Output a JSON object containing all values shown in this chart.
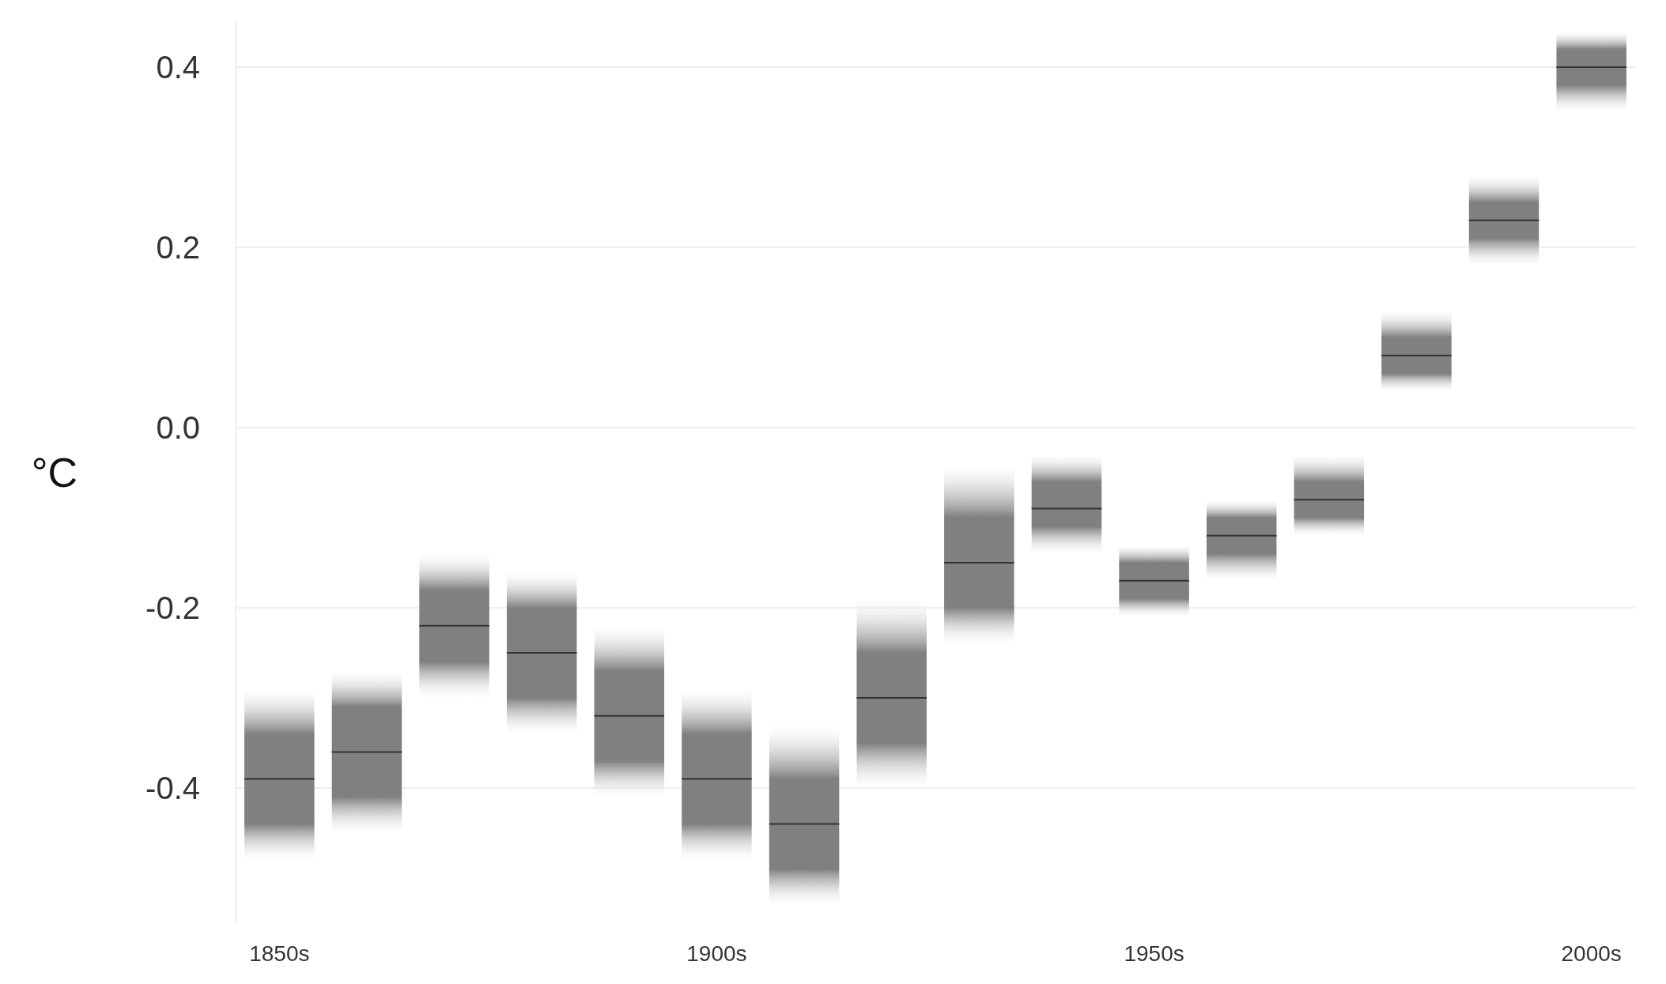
{
  "chart_data": {
    "type": "box",
    "ylabel": "°C",
    "categories": [
      "1850s",
      null,
      null,
      null,
      null,
      "1900s",
      null,
      null,
      null,
      null,
      "1950s",
      null,
      null,
      null,
      null,
      "2000s"
    ],
    "ylim": [
      -0.55,
      0.45
    ],
    "yticks": [
      {
        "value": -0.4,
        "label": "-0.4"
      },
      {
        "value": -0.2,
        "label": "-0.2"
      },
      {
        "value": 0,
        "label": "0.0"
      },
      {
        "value": 0.2,
        "label": "0.2"
      },
      {
        "value": 0.4,
        "label": "0.4"
      }
    ],
    "grid": "y",
    "series": [
      {
        "color": "#808080",
        "boxes": [
          {
            "low": -0.48,
            "q1": -0.44,
            "median": -0.39,
            "q3": -0.34,
            "high": -0.29
          },
          {
            "low": -0.45,
            "q1": -0.41,
            "median": -0.36,
            "q3": -0.31,
            "high": -0.27
          },
          {
            "low": -0.3,
            "q1": -0.26,
            "median": -0.22,
            "q3": -0.18,
            "high": -0.14
          },
          {
            "low": -0.34,
            "q1": -0.3,
            "median": -0.25,
            "q3": -0.2,
            "high": -0.16
          },
          {
            "low": -0.41,
            "q1": -0.37,
            "median": -0.32,
            "q3": -0.27,
            "high": -0.22
          },
          {
            "low": -0.48,
            "q1": -0.44,
            "median": -0.39,
            "q3": -0.34,
            "high": -0.29
          },
          {
            "low": -0.53,
            "q1": -0.49,
            "median": -0.44,
            "q3": -0.39,
            "high": -0.33
          },
          {
            "low": -0.4,
            "q1": -0.35,
            "median": -0.3,
            "q3": -0.25,
            "high": -0.19
          },
          {
            "low": -0.24,
            "q1": -0.2,
            "median": -0.15,
            "q3": -0.1,
            "high": -0.04
          },
          {
            "low": -0.14,
            "q1": -0.11,
            "median": -0.09,
            "q3": -0.06,
            "high": -0.03
          },
          {
            "low": -0.21,
            "q1": -0.19,
            "median": -0.17,
            "q3": -0.15,
            "high": -0.13
          },
          {
            "low": -0.17,
            "q1": -0.14,
            "median": -0.12,
            "q3": -0.1,
            "high": -0.08
          },
          {
            "low": -0.12,
            "q1": -0.1,
            "median": -0.08,
            "q3": -0.06,
            "high": -0.03
          },
          {
            "low": 0.04,
            "q1": 0.06,
            "median": 0.08,
            "q3": 0.1,
            "high": 0.13
          },
          {
            "low": 0.18,
            "q1": 0.21,
            "median": 0.23,
            "q3": 0.25,
            "high": 0.28
          },
          {
            "low": 0.35,
            "q1": 0.38,
            "median": 0.4,
            "q3": 0.42,
            "high": 0.44
          }
        ]
      }
    ]
  }
}
